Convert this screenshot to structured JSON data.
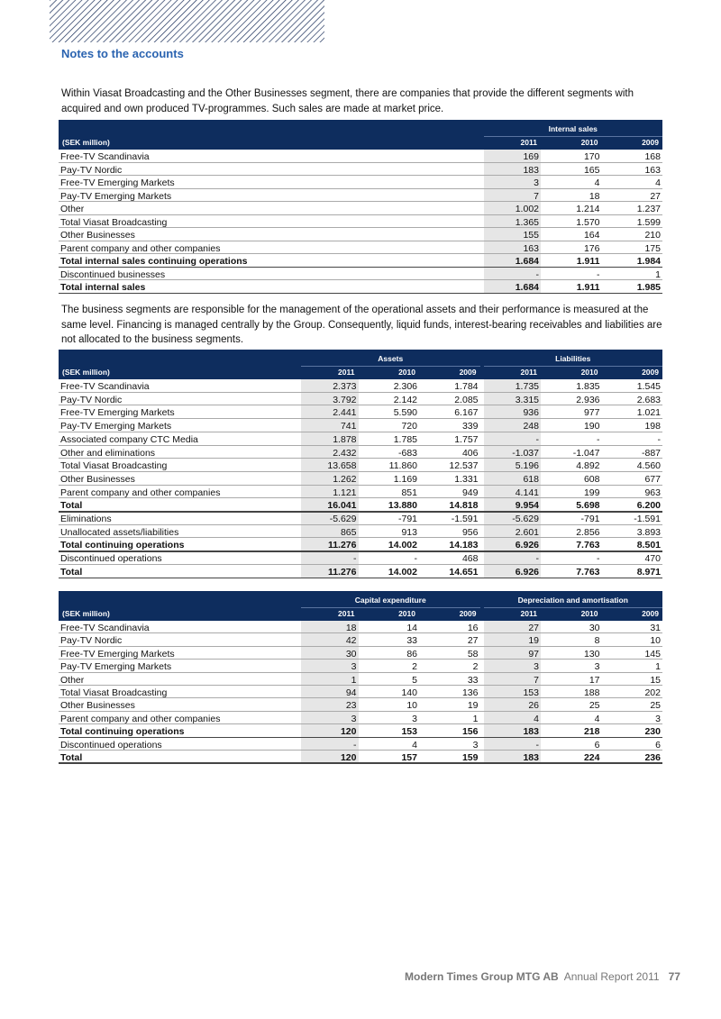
{
  "header": {
    "section": "Notes to the accounts"
  },
  "intro1": "Within  Viasat Broadcasting  and the  Other Businesses segment, there are companies that provide the different segments with acquired and own produced TV-programmes. Such sales are made at market price.",
  "intro2": "The business segments are responsible for the management of the operational assets and their performance is measured at the same level. Financing is managed centrally by the Group. Consequently, liquid funds, interest-bearing receivables and liabilities are not allocated to the business segments.",
  "table1": {
    "groups": [
      "Internal sales"
    ],
    "unit": "(SEK million)",
    "years": [
      "2011",
      "2010",
      "2009"
    ],
    "rows": [
      {
        "label": "Free-TV Scandinavia",
        "values": [
          "169",
          "170",
          "168"
        ]
      },
      {
        "label": "Pay-TV Nordic",
        "values": [
          "183",
          "165",
          "163"
        ]
      },
      {
        "label": "Free-TV Emerging Markets",
        "values": [
          "3",
          "4",
          "4"
        ]
      },
      {
        "label": "Pay-TV Emerging Markets",
        "values": [
          "7",
          "18",
          "27"
        ]
      },
      {
        "label": "Other",
        "values": [
          "1.002",
          "1.214",
          "1.237"
        ]
      },
      {
        "label": "Total Viasat Broadcasting",
        "values": [
          "1.365",
          "1.570",
          "1.599"
        ]
      },
      {
        "label": "Other Businesses",
        "values": [
          "155",
          "164",
          "210"
        ]
      },
      {
        "label": "Parent company and other companies",
        "values": [
          "163",
          "176",
          "175"
        ]
      },
      {
        "label": "Total internal sales continuing operations",
        "values": [
          "1.684",
          "1.911",
          "1.984"
        ],
        "bold": true
      },
      {
        "label": "Discontinued businesses",
        "values": [
          "-",
          "-",
          "1"
        ]
      },
      {
        "label": "Total internal sales",
        "values": [
          "1.684",
          "1.911",
          "1.985"
        ],
        "bold": true
      }
    ]
  },
  "table2": {
    "groups": [
      "Assets",
      "Liabilities"
    ],
    "unit": "(SEK million)",
    "years": [
      "2011",
      "2010",
      "2009"
    ],
    "rows": [
      {
        "label": "Free-TV Scandinavia",
        "values": [
          "2.373",
          "2.306",
          "1.784",
          "1.735",
          "1.835",
          "1.545"
        ]
      },
      {
        "label": "Pay-TV Nordic",
        "values": [
          "3.792",
          "2.142",
          "2.085",
          "3.315",
          "2.936",
          "2.683"
        ]
      },
      {
        "label": "Free-TV Emerging Markets",
        "values": [
          "2.441",
          "5.590",
          "6.167",
          "936",
          "977",
          "1.021"
        ]
      },
      {
        "label": "Pay-TV Emerging Markets",
        "values": [
          "741",
          "720",
          "339",
          "248",
          "190",
          "198"
        ]
      },
      {
        "label": "Associated company CTC Media",
        "values": [
          "1.878",
          "1.785",
          "1.757",
          "-",
          "-",
          "-"
        ]
      },
      {
        "label": "Other and eliminations",
        "values": [
          "2.432",
          "-683",
          "406",
          "-1.037",
          "-1.047",
          "-887"
        ]
      },
      {
        "label": "Total Viasat Broadcasting",
        "values": [
          "13.658",
          "11.860",
          "12.537",
          "5.196",
          "4.892",
          "4.560"
        ]
      },
      {
        "label": "Other Businesses",
        "values": [
          "1.262",
          "1.169",
          "1.331",
          "618",
          "608",
          "677"
        ]
      },
      {
        "label": "Parent company and other companies",
        "values": [
          "1.121",
          "851",
          "949",
          "4.141",
          "199",
          "963"
        ]
      },
      {
        "label": "Total",
        "values": [
          "16.041",
          "13.880",
          "14.818",
          "9.954",
          "5.698",
          "6.200"
        ],
        "bold": true
      },
      {
        "label": "Eliminations",
        "values": [
          "-5.629",
          "-791",
          "-1.591",
          "-5.629",
          "-791",
          "-1.591"
        ]
      },
      {
        "label": "Unallocated assets/liabilities",
        "values": [
          "865",
          "913",
          "956",
          "2.601",
          "2.856",
          "3.893"
        ]
      },
      {
        "label": "Total continuing operations",
        "values": [
          "11.276",
          "14.002",
          "14.183",
          "6.926",
          "7.763",
          "8.501"
        ],
        "bold": true
      },
      {
        "label": "Discontinued operations",
        "values": [
          "-",
          "-",
          "468",
          "-",
          "-",
          "470"
        ]
      },
      {
        "label": "Total",
        "values": [
          "11.276",
          "14.002",
          "14.651",
          "6.926",
          "7.763",
          "8.971"
        ],
        "bold": true
      }
    ]
  },
  "table3": {
    "groups": [
      "Capital expenditure",
      "Depreciation and amortisation"
    ],
    "unit": "(SEK million)",
    "years": [
      "2011",
      "2010",
      "2009"
    ],
    "rows": [
      {
        "label": "Free-TV Scandinavia",
        "values": [
          "18",
          "14",
          "16",
          "27",
          "30",
          "31"
        ]
      },
      {
        "label": "Pay-TV Nordic",
        "values": [
          "42",
          "33",
          "27",
          "19",
          "8",
          "10"
        ]
      },
      {
        "label": "Free-TV Emerging Markets",
        "values": [
          "30",
          "86",
          "58",
          "97",
          "130",
          "145"
        ]
      },
      {
        "label": "Pay-TV Emerging Markets",
        "values": [
          "3",
          "2",
          "2",
          "3",
          "3",
          "1"
        ]
      },
      {
        "label": "Other",
        "values": [
          "1",
          "5",
          "33",
          "7",
          "17",
          "15"
        ]
      },
      {
        "label": "Total Viasat Broadcasting",
        "values": [
          "94",
          "140",
          "136",
          "153",
          "188",
          "202"
        ]
      },
      {
        "label": "Other Businesses",
        "values": [
          "23",
          "10",
          "19",
          "26",
          "25",
          "25"
        ]
      },
      {
        "label": "Parent company and other companies",
        "values": [
          "3",
          "3",
          "1",
          "4",
          "4",
          "3"
        ]
      },
      {
        "label": "Total continuing operations",
        "values": [
          "120",
          "153",
          "156",
          "183",
          "218",
          "230"
        ],
        "bold": true
      },
      {
        "label": "Discontinued operations",
        "values": [
          "-",
          "4",
          "3",
          "-",
          "6",
          "6"
        ]
      },
      {
        "label": "Total",
        "values": [
          "120",
          "157",
          "159",
          "183",
          "224",
          "236"
        ],
        "bold": true
      }
    ]
  },
  "footer": {
    "company": "Modern Times Group MTG AB",
    "report": "Annual Report 2011",
    "page": "77"
  }
}
